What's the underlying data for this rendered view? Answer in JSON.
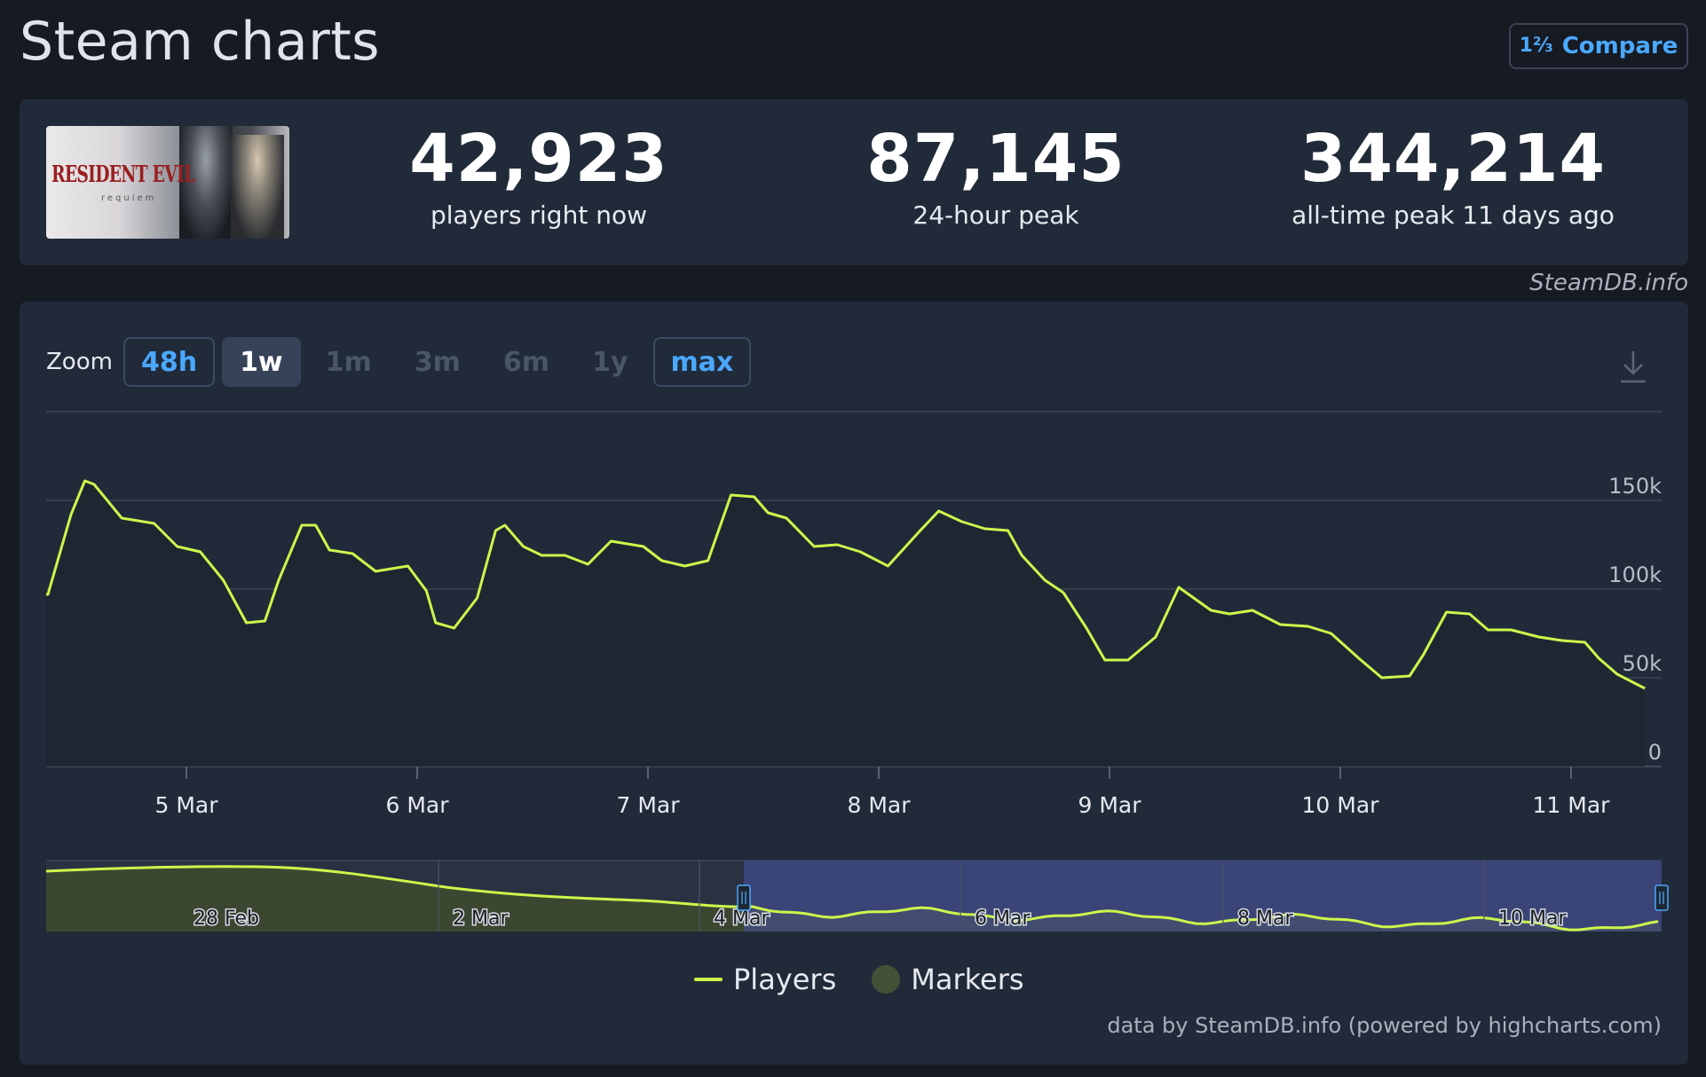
{
  "page": {
    "title": "Steam charts",
    "compare_label": "Compare",
    "compare_icon": "1⅔"
  },
  "game": {
    "logo_text": "RESIDENT EVIL",
    "logo_sub": "requiem"
  },
  "stats": [
    {
      "value": "42,923",
      "label": "players right now"
    },
    {
      "value": "87,145",
      "label": "24-hour peak"
    },
    {
      "value": "344,214",
      "label": "all-time peak 11 days ago"
    }
  ],
  "credit_top": "SteamDB.info",
  "zoom": {
    "label": "Zoom",
    "buttons": [
      "48h",
      "1w",
      "1m",
      "3m",
      "6m",
      "1y",
      "max"
    ],
    "active": "1w"
  },
  "legend": {
    "players": "Players",
    "markers": "Markers"
  },
  "credit_bottom": "data by SteamDB.info (powered by highcharts.com)",
  "colors": {
    "line": "#ccf74b",
    "accent": "#4aa8ff",
    "navigator": "#3d4880",
    "marker": "#435236"
  },
  "chart_data": {
    "type": "line",
    "series_name": "Players",
    "x_unit": "days since 4 Mar 00:00 (approx)",
    "x_tick_labels": [
      "5 Mar",
      "6 Mar",
      "7 Mar",
      "8 Mar",
      "9 Mar",
      "10 Mar",
      "11 Mar"
    ],
    "y_tick_labels": [
      "0",
      "50k",
      "100k",
      "150k"
    ],
    "ylim": [
      0,
      200000
    ],
    "x": [
      0.34,
      0.4,
      0.5,
      0.56,
      0.6,
      0.72,
      0.86,
      0.96,
      1.06,
      1.16,
      1.26,
      1.34,
      1.4,
      1.5,
      1.56,
      1.62,
      1.72,
      1.82,
      1.96,
      2.04,
      2.08,
      2.16,
      2.26,
      2.34,
      2.38,
      2.46,
      2.54,
      2.64,
      2.74,
      2.84,
      2.98,
      3.06,
      3.16,
      3.26,
      3.36,
      3.46,
      3.52,
      3.6,
      3.72,
      3.82,
      3.92,
      4.04,
      4.18,
      4.26,
      4.36,
      4.46,
      4.56,
      4.62,
      4.72,
      4.8,
      4.9,
      4.98,
      5.08,
      5.2,
      5.3,
      5.44,
      5.52,
      5.62,
      5.74,
      5.86,
      5.96,
      6.08,
      6.18,
      6.3,
      6.36,
      6.46,
      6.56,
      6.64,
      6.74,
      6.86,
      6.96,
      7.06,
      7.12,
      7.2,
      7.32
    ],
    "y": [
      97000,
      97000,
      142000,
      161000,
      159000,
      140000,
      137000,
      124000,
      121000,
      105000,
      81000,
      82000,
      105000,
      136000,
      136000,
      122000,
      120000,
      110000,
      113000,
      99000,
      81000,
      78000,
      95000,
      133000,
      136000,
      124000,
      119000,
      119000,
      114000,
      127000,
      124000,
      116000,
      113000,
      116000,
      153000,
      152000,
      143000,
      140000,
      124000,
      125000,
      121000,
      113000,
      133000,
      144000,
      138000,
      134000,
      133000,
      119000,
      105000,
      98000,
      78000,
      60000,
      60000,
      73000,
      101000,
      88000,
      86000,
      88000,
      80000,
      79000,
      75000,
      61000,
      50000,
      51000,
      63000,
      87000,
      86000,
      77000,
      77000,
      73000,
      71000,
      70000,
      61000,
      52000,
      44000
    ]
  },
  "navigator": {
    "tick_labels": [
      "28 Feb",
      "2 Mar",
      "4 Mar",
      "6 Mar",
      "8 Mar",
      "10 Mar"
    ]
  }
}
